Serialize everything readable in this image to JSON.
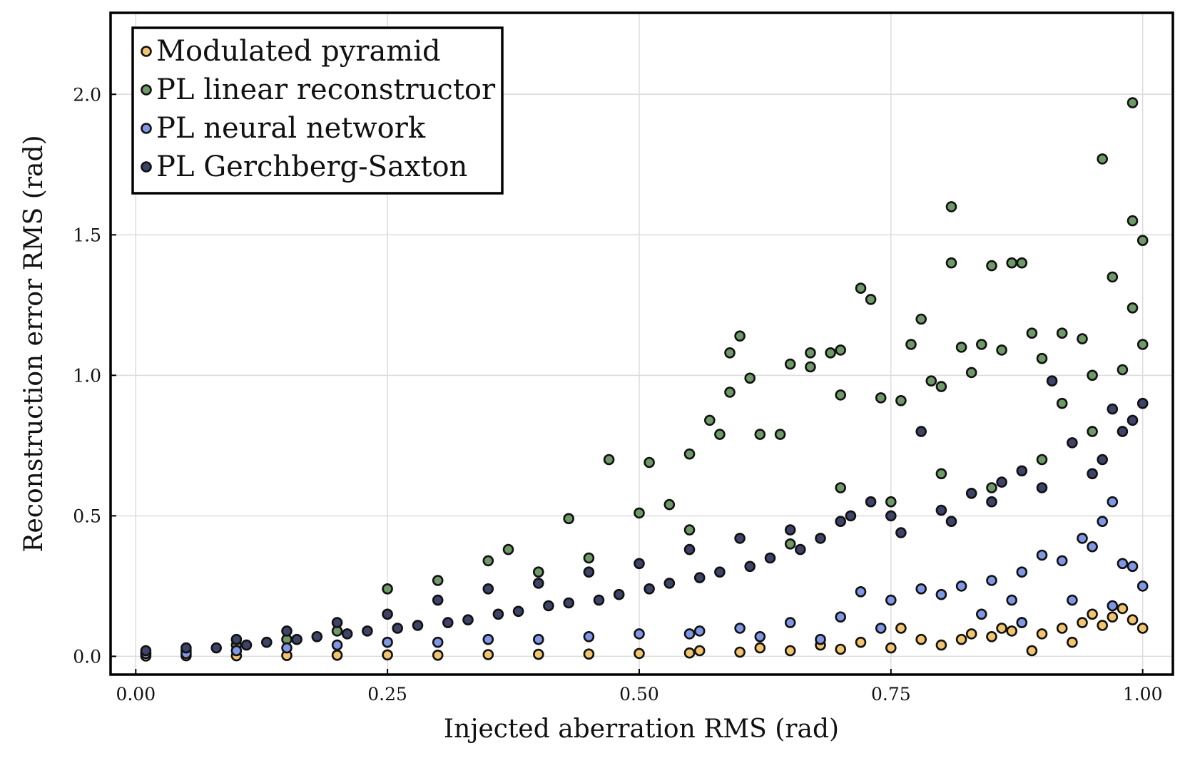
{
  "chart_data": {
    "type": "scatter",
    "title": "",
    "xlabel": "Injected aberration RMS (rad)",
    "ylabel": "Reconstruction error RMS (rad)",
    "xlim": [
      -0.025,
      1.03
    ],
    "ylim": [
      -0.065,
      2.29
    ],
    "xticks": [
      0.0,
      0.25,
      0.5,
      0.75,
      1.0
    ],
    "xtick_labels": [
      "0.00",
      "0.25",
      "0.50",
      "0.75",
      "1.00"
    ],
    "yticks": [
      0.0,
      0.5,
      1.0,
      1.5,
      2.0
    ],
    "ytick_labels": [
      "0.0",
      "0.5",
      "1.0",
      "1.5",
      "2.0"
    ],
    "grid": true,
    "legend_position": "top-left",
    "series": [
      {
        "name": "Modulated pyramid",
        "color": "#f2c46d",
        "points": [
          [
            0.01,
            0.001
          ],
          [
            0.05,
            0.002
          ],
          [
            0.1,
            0.002
          ],
          [
            0.15,
            0.003
          ],
          [
            0.2,
            0.004
          ],
          [
            0.25,
            0.005
          ],
          [
            0.3,
            0.004
          ],
          [
            0.35,
            0.006
          ],
          [
            0.4,
            0.007
          ],
          [
            0.45,
            0.008
          ],
          [
            0.5,
            0.01
          ],
          [
            0.55,
            0.012
          ],
          [
            0.6,
            0.015
          ],
          [
            0.65,
            0.02
          ],
          [
            0.7,
            0.025
          ],
          [
            0.75,
            0.03
          ],
          [
            0.8,
            0.04
          ],
          [
            0.82,
            0.06
          ],
          [
            0.85,
            0.07
          ],
          [
            0.87,
            0.09
          ],
          [
            0.88,
            0.12
          ],
          [
            0.9,
            0.08
          ],
          [
            0.92,
            0.1
          ],
          [
            0.94,
            0.12
          ],
          [
            0.95,
            0.15
          ],
          [
            0.96,
            0.11
          ],
          [
            0.97,
            0.14
          ],
          [
            0.98,
            0.17
          ],
          [
            0.99,
            0.13
          ],
          [
            1.0,
            0.1
          ],
          [
            0.56,
            0.02
          ],
          [
            0.62,
            0.03
          ],
          [
            0.68,
            0.04
          ],
          [
            0.72,
            0.05
          ],
          [
            0.78,
            0.06
          ],
          [
            0.83,
            0.08
          ],
          [
            0.89,
            0.02
          ],
          [
            0.93,
            0.05
          ],
          [
            0.76,
            0.1
          ],
          [
            0.86,
            0.1
          ]
        ]
      },
      {
        "name": "PL linear reconstructor",
        "color": "#6e9a68",
        "points": [
          [
            0.01,
            0.01
          ],
          [
            0.05,
            0.02
          ],
          [
            0.1,
            0.04
          ],
          [
            0.15,
            0.06
          ],
          [
            0.2,
            0.09
          ],
          [
            0.25,
            0.24
          ],
          [
            0.3,
            0.27
          ],
          [
            0.35,
            0.34
          ],
          [
            0.37,
            0.38
          ],
          [
            0.4,
            0.3
          ],
          [
            0.43,
            0.49
          ],
          [
            0.47,
            0.7
          ],
          [
            0.5,
            0.51
          ],
          [
            0.51,
            0.69
          ],
          [
            0.53,
            0.54
          ],
          [
            0.55,
            0.72
          ],
          [
            0.57,
            0.84
          ],
          [
            0.58,
            0.79
          ],
          [
            0.59,
            0.94
          ],
          [
            0.59,
            1.08
          ],
          [
            0.6,
            1.14
          ],
          [
            0.61,
            0.99
          ],
          [
            0.62,
            0.79
          ],
          [
            0.64,
            0.79
          ],
          [
            0.65,
            1.04
          ],
          [
            0.67,
            1.03
          ],
          [
            0.67,
            1.08
          ],
          [
            0.69,
            1.08
          ],
          [
            0.7,
            1.09
          ],
          [
            0.7,
            0.93
          ],
          [
            0.72,
            1.31
          ],
          [
            0.73,
            1.27
          ],
          [
            0.74,
            0.92
          ],
          [
            0.76,
            0.91
          ],
          [
            0.77,
            1.11
          ],
          [
            0.78,
            1.2
          ],
          [
            0.79,
            0.98
          ],
          [
            0.8,
            0.96
          ],
          [
            0.81,
            1.6
          ],
          [
            0.81,
            1.4
          ],
          [
            0.82,
            1.1
          ],
          [
            0.83,
            1.01
          ],
          [
            0.84,
            1.11
          ],
          [
            0.85,
            1.39
          ],
          [
            0.86,
            1.09
          ],
          [
            0.87,
            1.4
          ],
          [
            0.88,
            1.4
          ],
          [
            0.89,
            1.15
          ],
          [
            0.9,
            1.06
          ],
          [
            0.92,
            1.15
          ],
          [
            0.94,
            1.13
          ],
          [
            0.95,
            1.0
          ],
          [
            0.96,
            1.77
          ],
          [
            0.97,
            1.35
          ],
          [
            0.98,
            1.02
          ],
          [
            0.99,
            1.97
          ],
          [
            0.99,
            1.55
          ],
          [
            0.99,
            1.24
          ],
          [
            1.0,
            1.48
          ],
          [
            1.0,
            1.11
          ],
          [
            0.85,
            0.6
          ],
          [
            0.9,
            0.7
          ],
          [
            0.75,
            0.55
          ],
          [
            0.65,
            0.4
          ],
          [
            0.7,
            0.6
          ],
          [
            0.8,
            0.65
          ],
          [
            0.55,
            0.45
          ],
          [
            0.45,
            0.35
          ],
          [
            0.95,
            0.8
          ],
          [
            0.92,
            0.9
          ]
        ]
      },
      {
        "name": "PL neural network",
        "color": "#7f97e4",
        "points": [
          [
            0.01,
            0.01
          ],
          [
            0.05,
            0.01
          ],
          [
            0.1,
            0.02
          ],
          [
            0.15,
            0.03
          ],
          [
            0.2,
            0.04
          ],
          [
            0.25,
            0.05
          ],
          [
            0.3,
            0.05
          ],
          [
            0.35,
            0.06
          ],
          [
            0.4,
            0.06
          ],
          [
            0.45,
            0.07
          ],
          [
            0.5,
            0.08
          ],
          [
            0.55,
            0.08
          ],
          [
            0.6,
            0.1
          ],
          [
            0.65,
            0.12
          ],
          [
            0.7,
            0.14
          ],
          [
            0.72,
            0.23
          ],
          [
            0.75,
            0.2
          ],
          [
            0.78,
            0.24
          ],
          [
            0.8,
            0.22
          ],
          [
            0.82,
            0.25
          ],
          [
            0.85,
            0.27
          ],
          [
            0.87,
            0.2
          ],
          [
            0.88,
            0.3
          ],
          [
            0.9,
            0.36
          ],
          [
            0.92,
            0.34
          ],
          [
            0.94,
            0.42
          ],
          [
            0.95,
            0.39
          ],
          [
            0.96,
            0.48
          ],
          [
            0.97,
            0.55
          ],
          [
            0.98,
            0.33
          ],
          [
            0.99,
            0.32
          ],
          [
            1.0,
            0.25
          ],
          [
            0.68,
            0.06
          ],
          [
            0.74,
            0.1
          ],
          [
            0.84,
            0.15
          ],
          [
            0.93,
            0.2
          ],
          [
            0.62,
            0.07
          ],
          [
            0.56,
            0.09
          ],
          [
            0.88,
            0.12
          ],
          [
            0.97,
            0.18
          ]
        ]
      },
      {
        "name": "PL Gerchberg-Saxton",
        "color": "#3d4369",
        "points": [
          [
            0.01,
            0.02
          ],
          [
            0.05,
            0.03
          ],
          [
            0.1,
            0.06
          ],
          [
            0.15,
            0.09
          ],
          [
            0.2,
            0.12
          ],
          [
            0.25,
            0.15
          ],
          [
            0.3,
            0.2
          ],
          [
            0.35,
            0.24
          ],
          [
            0.4,
            0.26
          ],
          [
            0.45,
            0.3
          ],
          [
            0.5,
            0.33
          ],
          [
            0.55,
            0.38
          ],
          [
            0.6,
            0.42
          ],
          [
            0.65,
            0.45
          ],
          [
            0.7,
            0.48
          ],
          [
            0.75,
            0.5
          ],
          [
            0.8,
            0.52
          ],
          [
            0.85,
            0.55
          ],
          [
            0.9,
            0.6
          ],
          [
            0.95,
            0.65
          ],
          [
            1.0,
            0.9
          ],
          [
            0.99,
            0.84
          ],
          [
            0.98,
            0.8
          ],
          [
            0.97,
            0.88
          ],
          [
            0.96,
            0.7
          ],
          [
            0.93,
            0.76
          ],
          [
            0.91,
            0.98
          ],
          [
            0.88,
            0.66
          ],
          [
            0.86,
            0.62
          ],
          [
            0.83,
            0.58
          ],
          [
            0.81,
            0.48
          ],
          [
            0.78,
            0.8
          ],
          [
            0.76,
            0.44
          ],
          [
            0.73,
            0.55
          ],
          [
            0.71,
            0.5
          ],
          [
            0.68,
            0.42
          ],
          [
            0.66,
            0.38
          ],
          [
            0.63,
            0.35
          ],
          [
            0.61,
            0.32
          ],
          [
            0.58,
            0.3
          ],
          [
            0.56,
            0.28
          ],
          [
            0.53,
            0.26
          ],
          [
            0.51,
            0.24
          ],
          [
            0.48,
            0.22
          ],
          [
            0.46,
            0.2
          ],
          [
            0.43,
            0.19
          ],
          [
            0.41,
            0.18
          ],
          [
            0.38,
            0.16
          ],
          [
            0.36,
            0.15
          ],
          [
            0.33,
            0.13
          ],
          [
            0.31,
            0.12
          ],
          [
            0.28,
            0.11
          ],
          [
            0.26,
            0.1
          ],
          [
            0.23,
            0.09
          ],
          [
            0.21,
            0.08
          ],
          [
            0.18,
            0.07
          ],
          [
            0.16,
            0.06
          ],
          [
            0.13,
            0.05
          ],
          [
            0.11,
            0.04
          ],
          [
            0.08,
            0.03
          ]
        ]
      }
    ]
  }
}
